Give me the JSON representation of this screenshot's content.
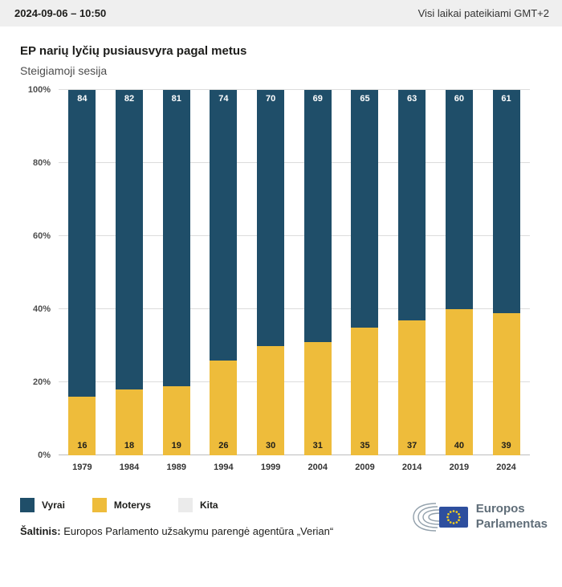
{
  "header": {
    "datetime": "2024-09-06 – 10:50",
    "timezone_note": "Visi laikai pateikiami GMT+2"
  },
  "title": "EP narių lyčių pusiausvyra pagal metus",
  "subtitle": "Steigiamoji sesija",
  "chart_data": {
    "type": "bar",
    "stacked": true,
    "percent": true,
    "title": "EP narių lyčių pusiausvyra pagal metus",
    "subtitle": "Steigiamoji sesija",
    "categories": [
      "1979",
      "1984",
      "1989",
      "1994",
      "1999",
      "2004",
      "2009",
      "2014",
      "2019",
      "2024"
    ],
    "series": [
      {
        "name": "Vyrai",
        "color": "#1f4e69",
        "values": [
          84,
          82,
          81,
          74,
          70,
          69,
          65,
          63,
          60,
          61
        ]
      },
      {
        "name": "Moterys",
        "color": "#eebc3b",
        "values": [
          16,
          18,
          19,
          26,
          30,
          31,
          35,
          37,
          40,
          39
        ]
      },
      {
        "name": "Kita",
        "color": "#ebebeb",
        "values": [
          0,
          0,
          0,
          0,
          0,
          0,
          0,
          0,
          0,
          0
        ]
      }
    ],
    "y_ticks": [
      "0%",
      "20%",
      "40%",
      "60%",
      "80%",
      "100%"
    ],
    "ylim": [
      0,
      100
    ],
    "grid": true,
    "legend_position": "bottom"
  },
  "legend": [
    {
      "label": "Vyrai",
      "color": "#1f4e69"
    },
    {
      "label": "Moterys",
      "color": "#eebc3b"
    },
    {
      "label": "Kita",
      "color": "#ebebeb"
    }
  ],
  "footer": {
    "source_label": "Šaltinis:",
    "source_text": " Europos Parlamento užsakymu parengė agentūra „Verian“",
    "logo_line1": "Europos",
    "logo_line2": "Parlamentas"
  },
  "colors": {
    "men": "#1f4e69",
    "women": "#eebc3b",
    "other": "#ebebeb",
    "topbar_bg": "#efefef"
  }
}
